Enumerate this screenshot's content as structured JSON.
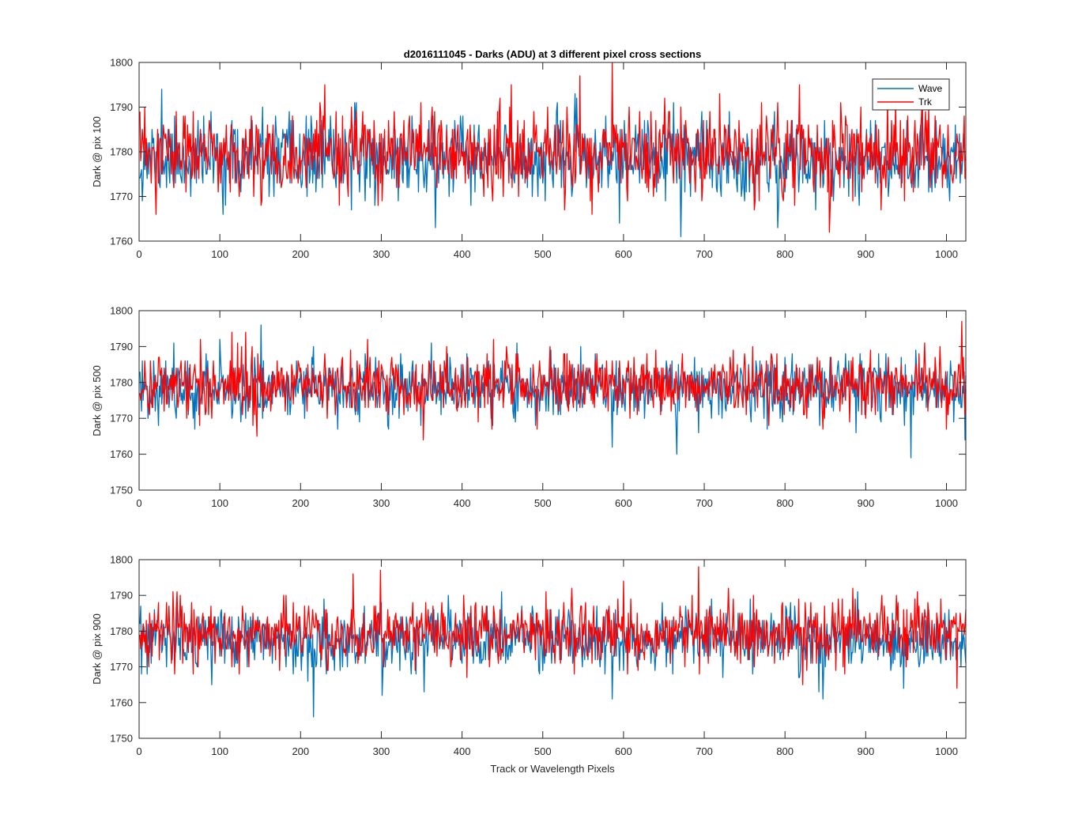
{
  "figure": {
    "title": "d2016111045 - Darks (ADU) at 3 different pixel cross sections"
  },
  "colors": {
    "wave": "#0072BD",
    "trk": "#FF0000",
    "axis": "#262626"
  },
  "chart_data": [
    {
      "type": "line",
      "title": "d2016111045 - Darks (ADU) at 3 different pixel cross sections",
      "xlabel": "",
      "ylabel": "Dark @ pix 100",
      "xlim": [
        0,
        1024
      ],
      "ylim": [
        1760,
        1800
      ],
      "xticks": [
        0,
        100,
        200,
        300,
        400,
        500,
        600,
        700,
        800,
        900,
        1000
      ],
      "yticks": [
        1760,
        1770,
        1780,
        1790,
        1800
      ],
      "grid": false,
      "legend": "top-right",
      "legend_entries": [
        "Wave",
        "Trk"
      ],
      "series": [
        {
          "name": "Wave",
          "color": "#0072BD",
          "mean": 1778.5,
          "std": 4.3,
          "n": 1024,
          "seed": 11,
          "min": 1761,
          "max": 1794,
          "extremes": [
            [
              27,
              1794
            ],
            [
              670,
              1761
            ],
            [
              366,
              1763
            ],
            [
              790,
              1763
            ]
          ]
        },
        {
          "name": "Trk",
          "color": "#FF0000",
          "mean": 1779.5,
          "std": 4.6,
          "n": 1024,
          "seed": 23,
          "min": 1762,
          "max": 1800,
          "extremes": [
            [
              585,
              1800
            ],
            [
              545,
              1797
            ],
            [
              854,
              1762
            ],
            [
              20,
              1766
            ]
          ]
        }
      ]
    },
    {
      "type": "line",
      "title": "",
      "xlabel": "",
      "ylabel": "Dark @ pix 500",
      "xlim": [
        0,
        1024
      ],
      "ylim": [
        1750,
        1800
      ],
      "xticks": [
        0,
        100,
        200,
        300,
        400,
        500,
        600,
        700,
        800,
        900,
        1000
      ],
      "yticks": [
        1750,
        1760,
        1770,
        1780,
        1790,
        1800
      ],
      "grid": false,
      "legend": "none",
      "series": [
        {
          "name": "Wave",
          "color": "#0072BD",
          "mean": 1778.5,
          "std": 4.2,
          "n": 1024,
          "seed": 37,
          "min": 1759,
          "max": 1796,
          "extremes": [
            [
              150,
              1796
            ],
            [
              665,
              1760
            ],
            [
              955,
              1759
            ],
            [
              585,
              1762
            ],
            [
              1022,
              1764
            ]
          ]
        },
        {
          "name": "Trk",
          "color": "#FF0000",
          "mean": 1779.5,
          "std": 4.4,
          "n": 1024,
          "seed": 41,
          "min": 1764,
          "max": 1797,
          "extremes": [
            [
              1018,
              1797
            ],
            [
              131,
              1794
            ],
            [
              351,
              1764
            ]
          ]
        }
      ]
    },
    {
      "type": "line",
      "title": "",
      "xlabel": "Track or Wavelength Pixels",
      "ylabel": "Dark @ pix 900",
      "xlim": [
        0,
        1024
      ],
      "ylim": [
        1750,
        1800
      ],
      "xticks": [
        0,
        100,
        200,
        300,
        400,
        500,
        600,
        700,
        800,
        900,
        1000
      ],
      "yticks": [
        1750,
        1760,
        1770,
        1780,
        1790,
        1800
      ],
      "grid": false,
      "legend": "none",
      "series": [
        {
          "name": "Wave",
          "color": "#0072BD",
          "mean": 1777.5,
          "std": 4.2,
          "n": 1024,
          "seed": 53,
          "min": 1756,
          "max": 1793,
          "extremes": [
            [
              215,
              1756
            ],
            [
              585,
              1761
            ],
            [
              846,
              1761
            ],
            [
              300,
              1762
            ]
          ]
        },
        {
          "name": "Trk",
          "color": "#FF0000",
          "mean": 1779.5,
          "std": 4.4,
          "n": 1024,
          "seed": 67,
          "min": 1764,
          "max": 1798,
          "extremes": [
            [
              692,
              1798
            ],
            [
              264,
              1796
            ],
            [
              1012,
              1764
            ]
          ]
        }
      ]
    }
  ]
}
